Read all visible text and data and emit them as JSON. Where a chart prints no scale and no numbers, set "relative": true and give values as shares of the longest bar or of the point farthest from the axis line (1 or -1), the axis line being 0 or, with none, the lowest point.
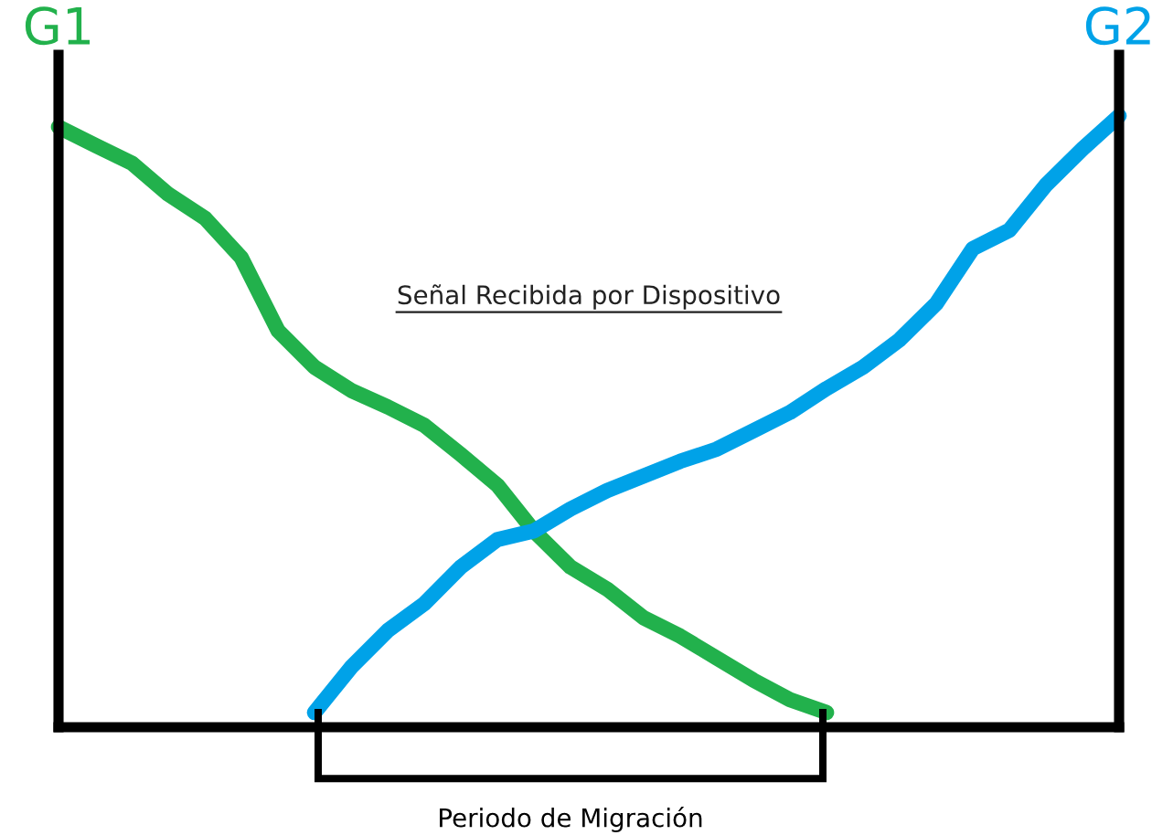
{
  "chart_data": {
    "type": "line",
    "relative": true,
    "title": "Señal Recibida por Dispositivo",
    "ylabel": "G1",
    "y2label": "G2",
    "marker": "none",
    "line_style": "solid",
    "categories": [
      null,
      null,
      null,
      null,
      null,
      null,
      null,
      null,
      null,
      null,
      null,
      null,
      null,
      null,
      null,
      null,
      null,
      null,
      null,
      null,
      null,
      null,
      null,
      null,
      null,
      null,
      null,
      null,
      null,
      null
    ],
    "series": [
      {
        "color": "#22b14c",
        "values": [
          0.982,
          0.952,
          0.923,
          0.872,
          0.833,
          0.768,
          0.649,
          0.589,
          0.551,
          0.524,
          0.494,
          0.446,
          0.396,
          0.321,
          0.262,
          0.226,
          0.179,
          0.149,
          0.113,
          0.077,
          0.045,
          0.024,
          null,
          null,
          null,
          null,
          null,
          null,
          null,
          null
        ]
      },
      {
        "color": "#00a2e8",
        "values": [
          null,
          null,
          null,
          null,
          null,
          null,
          null,
          0.024,
          0.098,
          0.158,
          0.202,
          0.262,
          0.307,
          0.321,
          0.357,
          0.387,
          0.411,
          0.435,
          0.455,
          0.485,
          0.515,
          0.554,
          0.589,
          0.634,
          0.693,
          0.783,
          0.813,
          0.887,
          0.946,
          1.0
        ]
      }
    ],
    "annotations": [
      "Periodo de Migración"
    ]
  }
}
